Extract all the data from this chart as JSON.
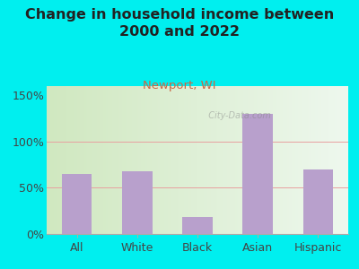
{
  "title": "Change in household income between\n2000 and 2022",
  "subtitle": "Newport, WI",
  "categories": [
    "All",
    "White",
    "Black",
    "Asian",
    "Hispanic"
  ],
  "values": [
    65,
    68,
    18,
    130,
    70
  ],
  "bar_color": "#b8a0cc",
  "outer_bg": "#00efef",
  "plot_bg_left": "#d0e8c0",
  "plot_bg_right": "#eef8ee",
  "grid_color": "#e8a0a0",
  "yticks": [
    0,
    50,
    100,
    150
  ],
  "ylim": [
    0,
    160
  ],
  "title_fontsize": 11.5,
  "subtitle_fontsize": 9.5,
  "subtitle_color": "#cc6644",
  "tick_label_fontsize": 9,
  "title_color": "#222222",
  "watermark": "  City-Data.com"
}
